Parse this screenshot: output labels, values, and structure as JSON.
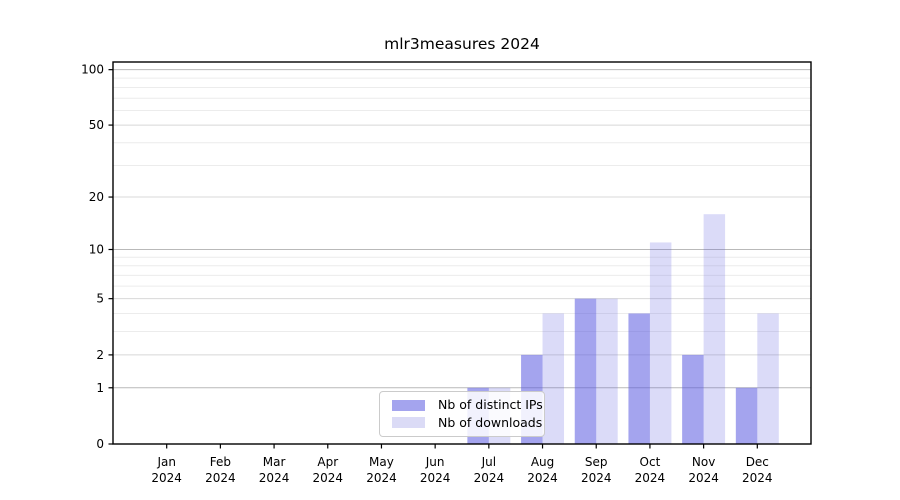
{
  "chart_data": {
    "type": "bar",
    "title": "mlr3measures 2024",
    "categories": [
      "Jan 2024",
      "Feb 2024",
      "Mar 2024",
      "Apr 2024",
      "May 2024",
      "Jun 2024",
      "Jul 2024",
      "Aug 2024",
      "Sep 2024",
      "Oct 2024",
      "Nov 2024",
      "Dec 2024"
    ],
    "series": [
      {
        "name": "Nb of distinct IPs",
        "values": [
          0,
          0,
          0,
          0,
          0,
          0,
          1,
          2,
          5,
          4,
          2,
          1
        ],
        "bar_color": "rgba(90,90,224,0.55)",
        "legend_color": "#a4a4ee"
      },
      {
        "name": "Nb of downloads",
        "values": [
          0,
          0,
          0,
          0,
          0,
          0,
          1,
          4,
          5,
          11,
          16,
          4
        ],
        "bar_color": "rgba(90,90,224,0.22)",
        "legend_color": "#dbdbf6"
      }
    ],
    "y_axis": {
      "scale": "log1p",
      "ticks": [
        0,
        1,
        2,
        5,
        10,
        20,
        50,
        100
      ],
      "minor_gridlines": [
        3,
        4,
        6,
        7,
        8,
        9,
        30,
        40,
        60,
        70,
        80,
        90
      ],
      "top": 110
    },
    "x_axis": {
      "tick_label_lines": 2
    },
    "grid": true,
    "legend_position": "bottom-center-left",
    "colors": {
      "frame": "#000000",
      "major_gridline_decade": "#b9b9b9",
      "major_gridline": "#d8d8d8",
      "minor_gridline": "#ececec",
      "tick_text": "#000000"
    }
  }
}
